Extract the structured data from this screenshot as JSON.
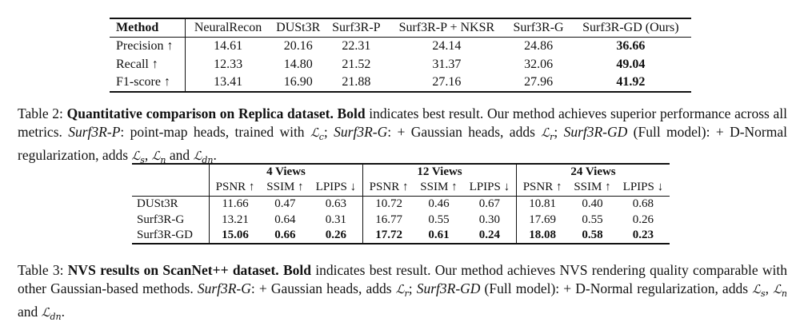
{
  "table2": {
    "headers": [
      "Method",
      "NeuralRecon",
      "DUSt3R",
      "Surf3R-P",
      "Surf3R-P + NKSR",
      "Surf3R-G",
      "Surf3R-GD (Ours)"
    ],
    "rows": [
      {
        "label": "Precision ↑",
        "values": [
          "14.61",
          "20.16",
          "22.31",
          "24.14",
          "24.86",
          "36.66"
        ]
      },
      {
        "label": "Recall ↑",
        "values": [
          "12.33",
          "14.80",
          "21.52",
          "31.37",
          "32.06",
          "49.04"
        ]
      },
      {
        "label": "F1-score ↑",
        "values": [
          "13.41",
          "16.90",
          "21.88",
          "27.16",
          "27.96",
          "41.92"
        ]
      }
    ]
  },
  "caption2": {
    "label": "Table 2:",
    "bold_title": "Quantitative comparison on Replica dataset.",
    "bold_word": "Bold",
    "text1": " indicates best result. Our method achieves superior performance across all metrics. ",
    "m1": "Surf3R-P",
    "text2": ": point-map heads, trained with ",
    "l_c": "ℒ",
    "l_c_sub": "c",
    "text3": "; ",
    "m2": "Surf3R-G",
    "text4": ": + Gaussian heads, adds ",
    "l_r": "ℒ",
    "l_r_sub": "r",
    "text5": "; ",
    "m3": "Surf3R-GD",
    "text6": " (Full model): + D-Normal regularization, adds ",
    "l_s": "ℒ",
    "l_s_sub": "s",
    "comma": ", ",
    "l_n": "ℒ",
    "l_n_sub": "n",
    "and": " and ",
    "l_dn": "ℒ",
    "l_dn_sub": "dn",
    "end": "."
  },
  "table3": {
    "groups": [
      "4 Views",
      "12 Views",
      "24 Views"
    ],
    "metrics": [
      "PSNR ↑",
      "SSIM ↑",
      "LPIPS ↓",
      "PSNR ↑",
      "SSIM ↑",
      "LPIPS ↓",
      "PSNR ↑",
      "SSIM ↑",
      "LPIPS ↓"
    ],
    "rows": [
      {
        "label": "DUSt3R",
        "values": [
          "11.66",
          "0.47",
          "0.63",
          "10.72",
          "0.46",
          "0.67",
          "10.81",
          "0.40",
          "0.68"
        ]
      },
      {
        "label": "Surf3R-G",
        "values": [
          "13.21",
          "0.64",
          "0.31",
          "16.77",
          "0.55",
          "0.30",
          "17.69",
          "0.55",
          "0.26"
        ]
      },
      {
        "label": "Surf3R-GD",
        "values": [
          "15.06",
          "0.66",
          "0.26",
          "17.72",
          "0.61",
          "0.24",
          "18.08",
          "0.58",
          "0.23"
        ]
      }
    ]
  },
  "caption3": {
    "label": "Table 3:",
    "bold_title": "NVS results on ScanNet++ dataset.",
    "bold_word": "Bold",
    "text1": " indicates best result. Our method achieves NVS rendering quality comparable with other Gaussian-based methods. ",
    "m1": "Surf3R-G",
    "text2": ": + Gaussian heads, adds ",
    "l_r": "ℒ",
    "l_r_sub": "r",
    "text3": "; ",
    "m2": "Surf3R-GD",
    "text4": " (Full model): + D-Normal regularization, adds ",
    "l_s": "ℒ",
    "l_s_sub": "s",
    "comma": ", ",
    "l_n": "ℒ",
    "l_n_sub": "n",
    "and": " and ",
    "l_dn": "ℒ",
    "l_dn_sub": "dn",
    "end": "."
  }
}
